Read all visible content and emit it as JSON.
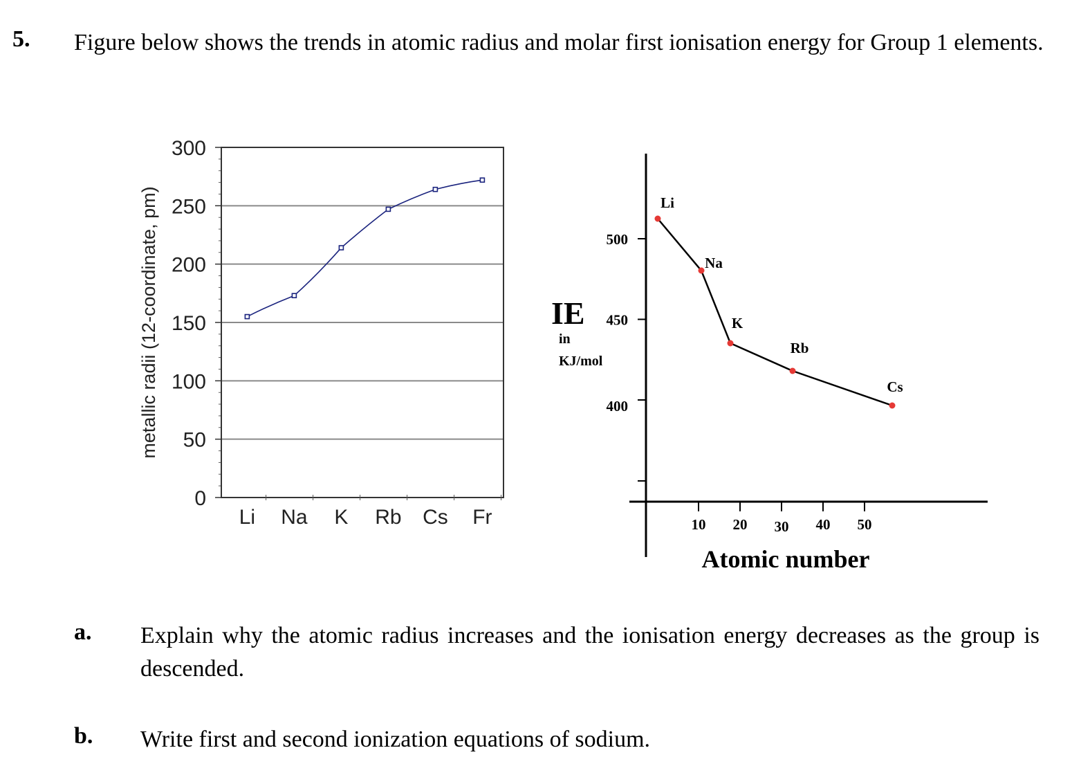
{
  "question": {
    "number": "5.",
    "text": "Figure below shows the trends in atomic radius and molar first ionisation energy for Group 1 elements."
  },
  "parts": [
    {
      "label": "a.",
      "text": "Explain why the atomic radius increases and the ionisation energy decreases as the group is descended."
    },
    {
      "label": "b.",
      "text": "Write first and second ionization equations of sodium."
    }
  ],
  "chart_data": [
    {
      "type": "line",
      "categories": [
        "Li",
        "Na",
        "K",
        "Rb",
        "Cs",
        "Fr"
      ],
      "series": [
        {
          "values": [
            155,
            173,
            214,
            247,
            264,
            272
          ],
          "color": "#1a237e"
        }
      ],
      "title": "",
      "xlabel": "",
      "ylabel": "metallic radii (12-coordinate, pm)",
      "ylim": [
        0,
        300
      ],
      "yticks": [
        0,
        50,
        100,
        150,
        200,
        250,
        300
      ],
      "grid": true
    },
    {
      "type": "line",
      "x": [
        3,
        11,
        19,
        37,
        55
      ],
      "point_labels": [
        "Li",
        "Na",
        "K",
        "Rb",
        "Cs"
      ],
      "series": [
        {
          "values": [
            520,
            496,
            419,
            403,
            376
          ],
          "color": "#000000",
          "marker_color": "#e53935"
        }
      ],
      "title": "",
      "xlabel": "Atomic number",
      "ylabel_main": "IE",
      "ylabel_sub1": "in",
      "ylabel_sub2": "KJ/mol",
      "xticks": [
        "10",
        "20",
        "30",
        "40",
        "50"
      ],
      "yticks": [
        "400",
        "450",
        "500"
      ],
      "grid": false
    }
  ]
}
